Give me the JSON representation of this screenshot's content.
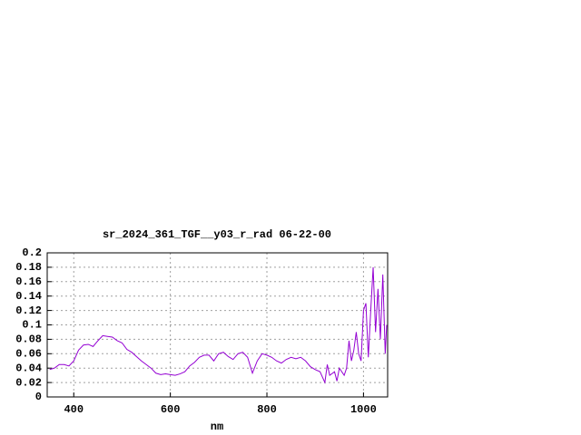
{
  "chart_data": {
    "type": "line",
    "title": "sr_2024_361_TGF__y03_r_rad 06-22-00",
    "x_label": "nm",
    "x": [
      350,
      360,
      370,
      380,
      390,
      400,
      410,
      420,
      430,
      440,
      450,
      460,
      470,
      480,
      490,
      500,
      510,
      520,
      530,
      540,
      550,
      560,
      570,
      580,
      590,
      600,
      610,
      620,
      630,
      640,
      650,
      660,
      670,
      680,
      690,
      700,
      710,
      720,
      730,
      740,
      750,
      760,
      770,
      780,
      790,
      800,
      810,
      820,
      830,
      840,
      850,
      860,
      870,
      880,
      890,
      900,
      910,
      920,
      925,
      930,
      940,
      945,
      950,
      960,
      965,
      970,
      975,
      980,
      985,
      990,
      995,
      1000,
      1005,
      1010,
      1015,
      1020,
      1025,
      1030,
      1035,
      1040,
      1045,
      1048
    ],
    "series": [
      {
        "name": "sr_2024_361_TGF__y03_r_rad",
        "color": "#9400d3",
        "values": [
          0.038,
          0.04,
          0.045,
          0.045,
          0.043,
          0.05,
          0.065,
          0.072,
          0.073,
          0.07,
          0.078,
          0.085,
          0.084,
          0.083,
          0.078,
          0.075,
          0.066,
          0.062,
          0.056,
          0.05,
          0.045,
          0.04,
          0.033,
          0.031,
          0.032,
          0.031,
          0.03,
          0.032,
          0.035,
          0.043,
          0.048,
          0.055,
          0.058,
          0.058,
          0.05,
          0.06,
          0.062,
          0.056,
          0.052,
          0.06,
          0.062,
          0.055,
          0.033,
          0.05,
          0.06,
          0.058,
          0.055,
          0.05,
          0.047,
          0.052,
          0.055,
          0.053,
          0.055,
          0.05,
          0.042,
          0.038,
          0.035,
          0.02,
          0.045,
          0.03,
          0.035,
          0.022,
          0.04,
          0.03,
          0.04,
          0.078,
          0.05,
          0.065,
          0.09,
          0.06,
          0.05,
          0.12,
          0.13,
          0.055,
          0.12,
          0.18,
          0.09,
          0.15,
          0.08,
          0.17,
          0.06,
          0.1
        ]
      }
    ],
    "xlim": [
      345,
      1050
    ],
    "ylim": [
      0,
      0.2
    ],
    "xticks": [
      400,
      600,
      800,
      1000
    ],
    "yticks": [
      0,
      0.02,
      0.04,
      0.06,
      0.08,
      0.1,
      0.12,
      0.14,
      0.16,
      0.18,
      0.2
    ],
    "grid": true
  }
}
